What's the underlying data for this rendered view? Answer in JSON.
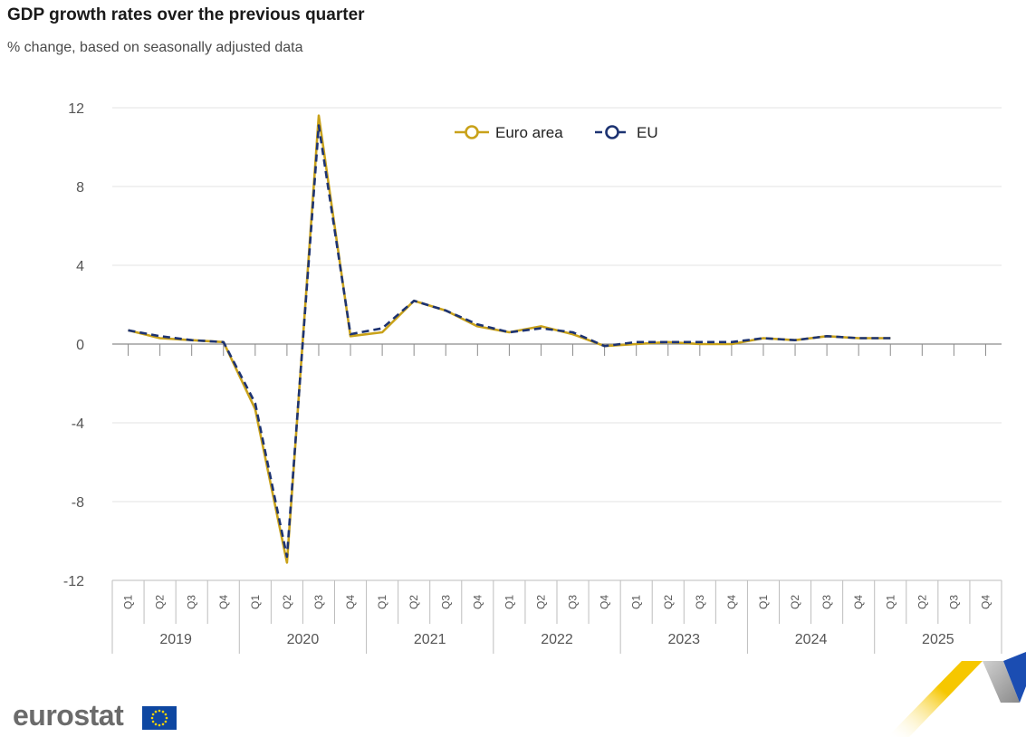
{
  "title": "GDP growth rates over the previous quarter",
  "subtitle": "% change, based on seasonally adjusted data",
  "logo_text": "eurostat",
  "colors": {
    "euro_area": "#c9a21a",
    "eu": "#1d3372",
    "grid": "#e3e3e3",
    "axis": "#8c8c8c",
    "tick_text": "#555555"
  },
  "chart_data": {
    "type": "line",
    "title": "GDP growth rates over the previous quarter",
    "subtitle": "% change, based on seasonally adjusted data",
    "ylim": [
      -12,
      12
    ],
    "yticks": [
      12,
      8,
      4,
      0,
      -4,
      -8,
      -12
    ],
    "years": [
      "2019",
      "2020",
      "2021",
      "2022",
      "2023",
      "2024",
      "2025"
    ],
    "quarters": [
      "Q1",
      "Q2",
      "Q3",
      "Q4"
    ],
    "legend": [
      "Euro area",
      "EU"
    ],
    "legend_position": "top-center",
    "series": [
      {
        "name": "Euro area",
        "style": "solid",
        "values": [
          0.7,
          0.3,
          0.2,
          0.1,
          -3.3,
          -11.1,
          11.6,
          0.4,
          0.6,
          2.2,
          1.7,
          0.9,
          0.6,
          0.9,
          0.5,
          -0.1,
          0.0,
          0.1,
          0.0,
          0.0,
          0.3,
          0.2,
          0.4,
          0.3,
          0.3,
          null,
          null,
          null
        ]
      },
      {
        "name": "EU",
        "style": "dashed",
        "values": [
          0.7,
          0.4,
          0.2,
          0.1,
          -3.0,
          -10.8,
          11.1,
          0.5,
          0.8,
          2.2,
          1.7,
          1.0,
          0.6,
          0.8,
          0.6,
          -0.1,
          0.1,
          0.1,
          0.1,
          0.1,
          0.3,
          0.2,
          0.4,
          0.3,
          0.3,
          null,
          null,
          null
        ]
      }
    ]
  }
}
